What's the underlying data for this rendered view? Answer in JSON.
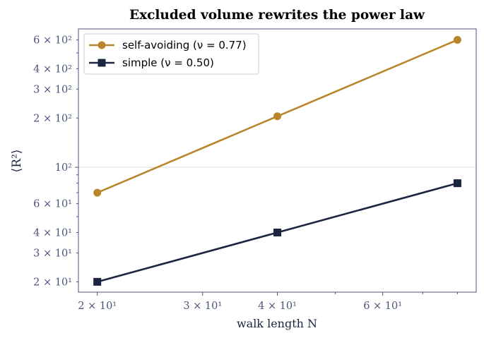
{
  "chart_data": {
    "type": "line",
    "title": "Excluded volume rewrites the power law",
    "xlabel": "walk length N",
    "ylabel": "⟨R²⟩",
    "xscale": "log",
    "yscale": "log",
    "xlim": [
      18.6,
      86
    ],
    "ylim": [
      17.3,
      700
    ],
    "grid": "horizontal at 10^2 only",
    "legend_position": "top-left",
    "x": [
      20,
      40,
      80
    ],
    "x_ticks": [
      {
        "value": 20,
        "label": "2 × 10¹"
      },
      {
        "value": 30,
        "label": "3 × 10¹"
      },
      {
        "value": 40,
        "label": "4 × 10¹"
      },
      {
        "value": 60,
        "label": "6 × 10¹"
      }
    ],
    "y_ticks": [
      {
        "value": 20,
        "label": "2 × 10¹"
      },
      {
        "value": 30,
        "label": "3 × 10¹"
      },
      {
        "value": 40,
        "label": "4 × 10¹"
      },
      {
        "value": 60,
        "label": "6 × 10¹"
      },
      {
        "value": 100,
        "label": "10²"
      },
      {
        "value": 200,
        "label": "2 × 10²"
      },
      {
        "value": 300,
        "label": "3 × 10²"
      },
      {
        "value": 400,
        "label": "4 × 10²"
      },
      {
        "value": 600,
        "label": "6 × 10²"
      }
    ],
    "series": [
      {
        "name": "self-avoiding (ν = 0.77)",
        "marker": "circle",
        "color": "#b8862a",
        "values": [
          70,
          205,
          600
        ]
      },
      {
        "name": "simple (ν = 0.50)",
        "marker": "square",
        "color": "#1b2541",
        "values": [
          20,
          40,
          80
        ]
      }
    ]
  },
  "colors": {
    "axis": "#4a5578",
    "tick_label": "#4a5578",
    "grid": "#dcdcdc"
  }
}
